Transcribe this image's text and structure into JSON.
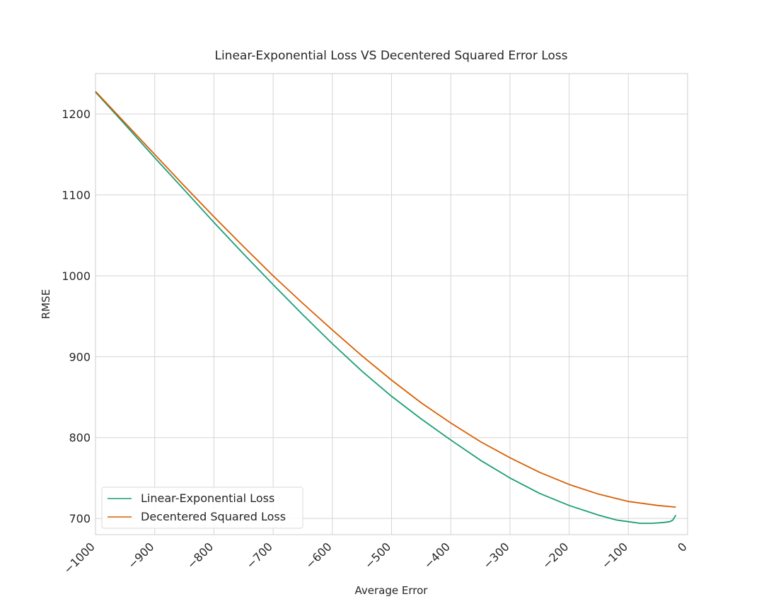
{
  "chart_data": {
    "type": "line",
    "title": "Linear-Exponential Loss VS Decentered Squared Error Loss",
    "xlabel": "Average Error",
    "ylabel": "RMSE",
    "xlim": [
      -1000,
      0
    ],
    "ylim": [
      680,
      1250
    ],
    "xticks": [
      -1000,
      -900,
      -800,
      -700,
      -600,
      -500,
      -400,
      -300,
      -200,
      -100,
      0
    ],
    "xtick_labels": [
      "−1000",
      "−900",
      "−800",
      "−700",
      "−600",
      "−500",
      "−400",
      "−300",
      "−200",
      "−100",
      "0"
    ],
    "yticks": [
      700,
      800,
      900,
      1000,
      1100,
      1200
    ],
    "ytick_labels": [
      "700",
      "800",
      "900",
      "1000",
      "1100",
      "1200"
    ],
    "grid": true,
    "legend_position": "lower-left",
    "series": [
      {
        "name": "Linear-Exponential Loss",
        "color": "#1b9e77",
        "x": [
          -1000,
          -950,
          -900,
          -850,
          -800,
          -750,
          -700,
          -650,
          -600,
          -550,
          -500,
          -450,
          -400,
          -350,
          -300,
          -250,
          -200,
          -150,
          -120,
          -100,
          -80,
          -60,
          -40,
          -30,
          -25,
          -20
        ],
        "y": [
          1227,
          1187,
          1146,
          1106,
          1066,
          1027,
          989,
          952,
          916,
          882,
          851,
          823,
          797,
          772,
          750,
          731,
          716,
          704,
          698,
          696,
          694,
          694,
          695,
          696,
          698,
          704
        ]
      },
      {
        "name": "Decentered Squared Loss",
        "color": "#d95f02",
        "x": [
          -1000,
          -950,
          -900,
          -850,
          -800,
          -750,
          -700,
          -650,
          -600,
          -550,
          -500,
          -450,
          -400,
          -350,
          -300,
          -250,
          -200,
          -150,
          -100,
          -50,
          -20
        ],
        "y": [
          1228,
          1189,
          1150,
          1111,
          1073,
          1036,
          1000,
          966,
          933,
          901,
          871,
          843,
          818,
          795,
          775,
          757,
          742,
          730,
          721,
          716,
          714
        ]
      }
    ]
  }
}
